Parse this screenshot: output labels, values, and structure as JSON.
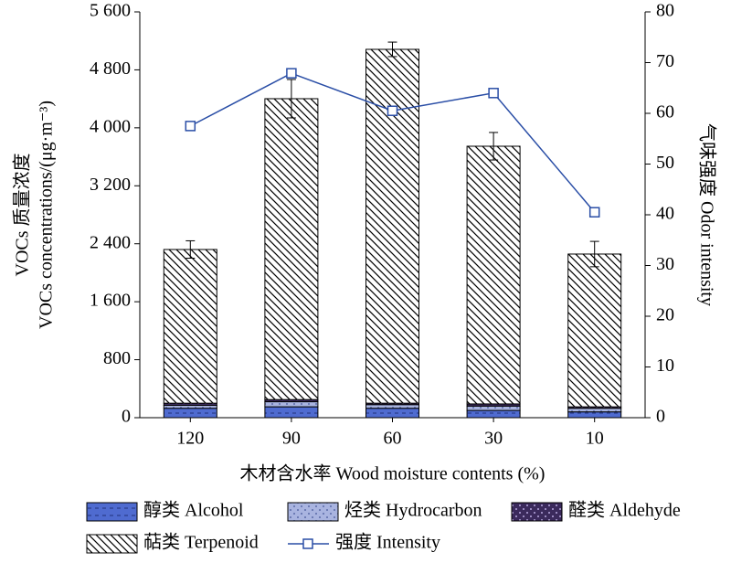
{
  "chart_data": {
    "type": "bar",
    "y_label_lines": [
      "VOCs 质量浓度",
      "VOCs concentrations/(μg·m⁻³)"
    ],
    "y2_label": "气味强度 Odor intensity",
    "x_label": "木材含水率 Wood moisture contents (%)",
    "categories": [
      "120",
      "90",
      "60",
      "30",
      "10"
    ],
    "series": [
      {
        "name": "醇类 Alcohol",
        "type": "bar",
        "color": "#4f6bd0",
        "values": [
          130,
          150,
          130,
          100,
          80
        ]
      },
      {
        "name": "烃类 Hydrocarbon",
        "type": "bar",
        "color": "#a9b4e0",
        "values": [
          40,
          70,
          50,
          60,
          50
        ]
      },
      {
        "name": "醛类 Aldehyde",
        "type": "bar",
        "color": "#3b2a5c",
        "values": [
          30,
          30,
          20,
          30,
          20
        ]
      },
      {
        "name": "萜类 Terpenoid",
        "type": "bar",
        "color": "#000000",
        "values": [
          2121,
          4152,
          4883,
          3556,
          2108
        ],
        "errors": [
          120,
          265,
          100,
          190,
          175
        ]
      },
      {
        "name": "强度 Intensity",
        "type": "line",
        "axis": "y2",
        "color": "#2a4ea6",
        "values": [
          57.5,
          67.9,
          60.5,
          64,
          40.5
        ]
      }
    ],
    "ylim": [
      0,
      5600
    ],
    "yticks": [
      0,
      800,
      {
        "value": 1600,
        "label": "1 600"
      },
      {
        "value": 2400,
        "label": "2 400"
      },
      {
        "value": 3200,
        "label": "3 200"
      },
      {
        "value": 4000,
        "label": "4 000"
      },
      {
        "value": 4800,
        "label": "4 800"
      },
      {
        "value": 5600,
        "label": "5 600"
      }
    ],
    "y2lim": [
      0,
      80
    ],
    "y2ticks": [
      0,
      10,
      20,
      30,
      40,
      50,
      60,
      70,
      80
    ]
  }
}
